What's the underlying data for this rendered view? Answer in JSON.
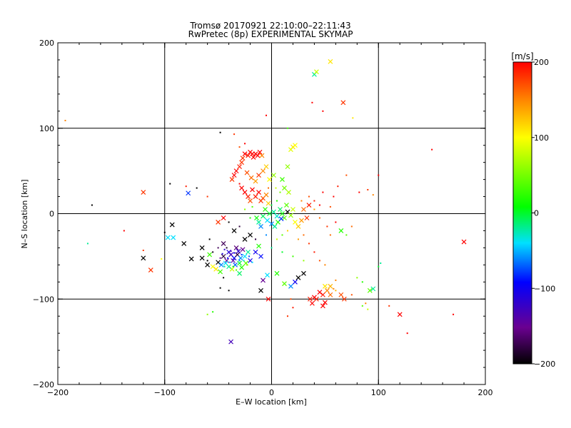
{
  "chart_data": {
    "type": "scatter",
    "title": "Tromsø 20170921 22:10:00–22:11:43",
    "subtitle": "RwPretec (8p) EXPERIMENTAL SKYMAP",
    "xlabel": "E–W location [km]",
    "ylabel": "N–S location [km]",
    "xlim": [
      -200,
      200
    ],
    "ylim": [
      -200,
      200
    ],
    "x_ticks": [
      -200,
      -100,
      0,
      100,
      200
    ],
    "y_ticks": [
      -200,
      -100,
      0,
      100,
      200
    ],
    "grid": true,
    "colorbar": {
      "label": "[m/s]",
      "range": [
        -200,
        200
      ],
      "ticks": [
        200,
        100,
        0,
        -100,
        -200
      ],
      "colormap": "rainbow (black→purple→blue→cyan→green→yellow→red)"
    },
    "marker_note": "cross = larger detections, dot = smaller detections",
    "points": [
      [
        -193,
        109,
        150,
        "dot"
      ],
      [
        -168,
        10,
        -200,
        "dot"
      ],
      [
        -120,
        25,
        180,
        "cross"
      ],
      [
        -113,
        -66,
        180,
        "cross"
      ],
      [
        -120,
        -52,
        -200,
        "cross"
      ],
      [
        -103,
        -53,
        100,
        "dot"
      ],
      [
        -93,
        -13,
        -200,
        "cross"
      ],
      [
        -92,
        -28,
        -40,
        "cross"
      ],
      [
        -97,
        -28,
        -40,
        "cross"
      ],
      [
        -82,
        -35,
        -200,
        "cross"
      ],
      [
        -78,
        24,
        -80,
        "cross"
      ],
      [
        -75,
        -53,
        -200,
        "cross"
      ],
      [
        -65,
        -52,
        -200,
        "cross"
      ],
      [
        -60,
        -60,
        -200,
        "cross"
      ],
      [
        -55,
        -62,
        100,
        "cross"
      ],
      [
        -50,
        -57,
        -200,
        "cross"
      ],
      [
        -45,
        -50,
        -180,
        "cross"
      ],
      [
        -48,
        -68,
        30,
        "cross"
      ],
      [
        -42,
        -55,
        -150,
        "cross"
      ],
      [
        -40,
        -45,
        -110,
        "cross"
      ],
      [
        -38,
        -48,
        -130,
        "cross"
      ],
      [
        -35,
        -52,
        -90,
        "cross"
      ],
      [
        -33,
        -40,
        -160,
        "cross"
      ],
      [
        -30,
        -58,
        0,
        "cross"
      ],
      [
        -28,
        -63,
        20,
        "cross"
      ],
      [
        -25,
        -50,
        -40,
        "cross"
      ],
      [
        -22,
        -45,
        -20,
        "cross"
      ],
      [
        -20,
        -55,
        -100,
        "cross"
      ],
      [
        -45,
        -35,
        -170,
        "cross"
      ],
      [
        -47,
        -60,
        -60,
        "cross"
      ],
      [
        -52,
        -65,
        110,
        "cross"
      ],
      [
        -37,
        -65,
        80,
        "cross"
      ],
      [
        -30,
        -70,
        -10,
        "cross"
      ],
      [
        -25,
        -30,
        -200,
        "cross"
      ],
      [
        -20,
        -25,
        -200,
        "cross"
      ],
      [
        -15,
        -45,
        -100,
        "cross"
      ],
      [
        -10,
        -50,
        -90,
        "cross"
      ],
      [
        -12,
        -38,
        20,
        "cross"
      ],
      [
        -38,
        -150,
        -130,
        "cross"
      ],
      [
        -65,
        -40,
        -200,
        "cross"
      ],
      [
        -58,
        -48,
        30,
        "cross"
      ],
      [
        -43,
        -58,
        -40,
        "cross"
      ],
      [
        -40,
        -62,
        -20,
        "cross"
      ],
      [
        -36,
        -55,
        -140,
        "cross"
      ],
      [
        -34,
        -60,
        -70,
        "cross"
      ],
      [
        -32,
        -48,
        -180,
        "cross"
      ],
      [
        -31,
        -44,
        -120,
        "cross"
      ],
      [
        -29,
        -52,
        -60,
        "cross"
      ],
      [
        -27,
        -42,
        -150,
        "cross"
      ],
      [
        -24,
        -58,
        40,
        "cross"
      ],
      [
        -55,
        -45,
        -190,
        "dot"
      ],
      [
        -50,
        -40,
        -170,
        "dot"
      ],
      [
        -44,
        -42,
        -120,
        "dot"
      ],
      [
        -41,
        -52,
        -90,
        "dot"
      ],
      [
        -39,
        -57,
        -50,
        "dot"
      ],
      [
        -36,
        -62,
        10,
        "dot"
      ],
      [
        -33,
        -66,
        40,
        "dot"
      ],
      [
        -28,
        -48,
        -80,
        "dot"
      ],
      [
        -26,
        -55,
        -30,
        "dot"
      ],
      [
        -23,
        -60,
        60,
        "dot"
      ],
      [
        -48,
        -52,
        -150,
        "dot"
      ],
      [
        -46,
        -47,
        -110,
        "dot"
      ],
      [
        -44,
        -62,
        -20,
        "dot"
      ],
      [
        -42,
        -40,
        -190,
        "dot"
      ],
      [
        -38,
        -44,
        -130,
        "dot"
      ],
      [
        -35,
        -46,
        -100,
        "dot"
      ],
      [
        -30,
        -55,
        -60,
        "dot"
      ],
      [
        -21,
        -50,
        -70,
        "dot"
      ],
      [
        -18,
        -57,
        -40,
        "dot"
      ],
      [
        -60,
        -55,
        -200,
        "dot"
      ],
      [
        -18,
        70,
        200,
        "cross"
      ],
      [
        -15,
        70,
        200,
        "cross"
      ],
      [
        -13,
        68,
        200,
        "cross"
      ],
      [
        -20,
        72,
        200,
        "cross"
      ],
      [
        -22,
        68,
        190,
        "cross"
      ],
      [
        -25,
        70,
        200,
        "cross"
      ],
      [
        -27,
        65,
        180,
        "cross"
      ],
      [
        -17,
        66,
        200,
        "cross"
      ],
      [
        -11,
        72,
        200,
        "cross"
      ],
      [
        -9,
        68,
        150,
        "cross"
      ],
      [
        -30,
        55,
        190,
        "cross"
      ],
      [
        -35,
        45,
        200,
        "cross"
      ],
      [
        -37,
        40,
        180,
        "cross"
      ],
      [
        -33,
        50,
        200,
        "cross"
      ],
      [
        -28,
        60,
        180,
        "cross"
      ],
      [
        -23,
        48,
        170,
        "cross"
      ],
      [
        -19,
        42,
        160,
        "cross"
      ],
      [
        -15,
        38,
        140,
        "cross"
      ],
      [
        -12,
        45,
        180,
        "cross"
      ],
      [
        -8,
        50,
        150,
        "cross"
      ],
      [
        -5,
        55,
        120,
        "cross"
      ],
      [
        -2,
        40,
        100,
        "cross"
      ],
      [
        2,
        45,
        60,
        "cross"
      ],
      [
        -18,
        28,
        200,
        "cross"
      ],
      [
        -15,
        20,
        190,
        "cross"
      ],
      [
        -12,
        25,
        200,
        "cross"
      ],
      [
        -10,
        15,
        180,
        "cross"
      ],
      [
        -8,
        18,
        170,
        "cross"
      ],
      [
        -5,
        22,
        150,
        "cross"
      ],
      [
        -3,
        12,
        120,
        "cross"
      ],
      [
        -25,
        25,
        200,
        "cross"
      ],
      [
        -22,
        20,
        190,
        "cross"
      ],
      [
        -20,
        15,
        170,
        "cross"
      ],
      [
        -28,
        30,
        200,
        "cross"
      ],
      [
        -30,
        35,
        200,
        "dot"
      ],
      [
        -6,
        5,
        20,
        "cross"
      ],
      [
        -2,
        0,
        0,
        "cross"
      ],
      [
        2,
        2,
        -20,
        "cross"
      ],
      [
        5,
        -3,
        -30,
        "cross"
      ],
      [
        8,
        5,
        -10,
        "cross"
      ],
      [
        10,
        0,
        10,
        "cross"
      ],
      [
        12,
        -5,
        40,
        "cross"
      ],
      [
        15,
        2,
        -200,
        "cross"
      ],
      [
        18,
        -2,
        60,
        "cross"
      ],
      [
        -4,
        -8,
        -40,
        "cross"
      ],
      [
        0,
        -12,
        -60,
        "cross"
      ],
      [
        3,
        -15,
        -20,
        "cross"
      ],
      [
        6,
        -10,
        20,
        "cross"
      ],
      [
        9,
        -6,
        -80,
        "cross"
      ],
      [
        -8,
        -3,
        -10,
        "cross"
      ],
      [
        -10,
        -15,
        -60,
        "cross"
      ],
      [
        -12,
        -10,
        -20,
        "cross"
      ],
      [
        -14,
        -5,
        10,
        "cross"
      ],
      [
        14,
        10,
        40,
        "cross"
      ],
      [
        20,
        5,
        80,
        "cross"
      ],
      [
        22,
        -10,
        100,
        "cross"
      ],
      [
        25,
        -15,
        120,
        "cross"
      ],
      [
        28,
        -8,
        140,
        "cross"
      ],
      [
        30,
        5,
        160,
        "cross"
      ],
      [
        33,
        -5,
        180,
        "cross"
      ],
      [
        35,
        10,
        190,
        "cross"
      ],
      [
        20,
        78,
        110,
        "cross"
      ],
      [
        22,
        80,
        100,
        "cross"
      ],
      [
        18,
        75,
        90,
        "cross"
      ],
      [
        15,
        55,
        60,
        "cross"
      ],
      [
        10,
        40,
        30,
        "cross"
      ],
      [
        12,
        30,
        50,
        "cross"
      ],
      [
        16,
        25,
        70,
        "cross"
      ],
      [
        40,
        163,
        -20,
        "cross"
      ],
      [
        42,
        166,
        80,
        "cross"
      ],
      [
        55,
        178,
        110,
        "cross"
      ],
      [
        67,
        130,
        180,
        "cross"
      ],
      [
        70,
        45,
        170,
        "dot"
      ],
      [
        62,
        32,
        190,
        "dot"
      ],
      [
        58,
        20,
        200,
        "dot"
      ],
      [
        55,
        8,
        170,
        "dot"
      ],
      [
        48,
        25,
        200,
        "dot"
      ],
      [
        45,
        -5,
        160,
        "dot"
      ],
      [
        40,
        5,
        140,
        "dot"
      ],
      [
        65,
        -20,
        20,
        "cross"
      ],
      [
        70,
        -25,
        40,
        "dot"
      ],
      [
        75,
        -15,
        160,
        "dot"
      ],
      [
        82,
        25,
        200,
        "dot"
      ],
      [
        90,
        28,
        180,
        "dot"
      ],
      [
        95,
        22,
        150,
        "dot"
      ],
      [
        100,
        45,
        200,
        "dot"
      ],
      [
        150,
        75,
        200,
        "dot"
      ],
      [
        180,
        -33,
        200,
        "cross"
      ],
      [
        170,
        -118,
        200,
        "dot"
      ],
      [
        120,
        -118,
        200,
        "cross"
      ],
      [
        127,
        -140,
        200,
        "dot"
      ],
      [
        110,
        -108,
        180,
        "dot"
      ],
      [
        95,
        -88,
        -20,
        "cross"
      ],
      [
        92,
        -90,
        40,
        "cross"
      ],
      [
        85,
        -80,
        20,
        "dot"
      ],
      [
        80,
        -75,
        60,
        "dot"
      ],
      [
        100,
        -62,
        0,
        "dot"
      ],
      [
        102,
        -58,
        -20,
        "dot"
      ],
      [
        88,
        -105,
        150,
        "dot"
      ],
      [
        90,
        -112,
        80,
        "dot"
      ],
      [
        85,
        -108,
        40,
        "dot"
      ],
      [
        68,
        -100,
        180,
        "cross"
      ],
      [
        65,
        -95,
        170,
        "cross"
      ],
      [
        55,
        -85,
        130,
        "cross"
      ],
      [
        52,
        -90,
        150,
        "cross"
      ],
      [
        50,
        -85,
        110,
        "cross"
      ],
      [
        48,
        -95,
        190,
        "cross"
      ],
      [
        45,
        -92,
        200,
        "cross"
      ],
      [
        42,
        -100,
        190,
        "cross"
      ],
      [
        40,
        -98,
        200,
        "cross"
      ],
      [
        38,
        -105,
        200,
        "cross"
      ],
      [
        36,
        -100,
        190,
        "cross"
      ],
      [
        48,
        -108,
        200,
        "cross"
      ],
      [
        50,
        -104,
        200,
        "cross"
      ],
      [
        55,
        -95,
        160,
        "cross"
      ],
      [
        58,
        -88,
        150,
        "dot"
      ],
      [
        60,
        -90,
        130,
        "dot"
      ],
      [
        75,
        -95,
        170,
        "dot"
      ],
      [
        60,
        -78,
        150,
        "dot"
      ],
      [
        25,
        -75,
        -200,
        "cross"
      ],
      [
        30,
        -70,
        -200,
        "cross"
      ],
      [
        22,
        -80,
        -100,
        "cross"
      ],
      [
        18,
        -85,
        -60,
        "cross"
      ],
      [
        12,
        -82,
        40,
        "cross"
      ],
      [
        5,
        -70,
        20,
        "cross"
      ],
      [
        -4,
        -72,
        -40,
        "cross"
      ],
      [
        -8,
        -78,
        -150,
        "cross"
      ],
      [
        -3,
        -100,
        200,
        "cross"
      ],
      [
        -10,
        -90,
        -200,
        "cross"
      ],
      [
        15,
        -120,
        180,
        "dot"
      ],
      [
        20,
        -110,
        190,
        "dot"
      ],
      [
        18,
        -100,
        170,
        "dot"
      ],
      [
        -40,
        -90,
        -200,
        "dot"
      ],
      [
        -48,
        -87,
        -200,
        "dot"
      ],
      [
        -55,
        -115,
        20,
        "dot"
      ],
      [
        -60,
        -118,
        60,
        "dot"
      ],
      [
        -100,
        -22,
        -200,
        "dot"
      ],
      [
        -120,
        -43,
        180,
        "dot"
      ],
      [
        -138,
        -20,
        200,
        "dot"
      ],
      [
        -172,
        -35,
        -20,
        "dot"
      ],
      [
        -95,
        35,
        -200,
        "dot"
      ],
      [
        -80,
        32,
        190,
        "dot"
      ],
      [
        -70,
        30,
        -200,
        "dot"
      ],
      [
        -60,
        20,
        180,
        "dot"
      ],
      [
        -50,
        -10,
        180,
        "cross"
      ],
      [
        -58,
        -30,
        -200,
        "dot"
      ],
      [
        -45,
        -75,
        -200,
        "dot"
      ],
      [
        -48,
        95,
        -200,
        "dot"
      ],
      [
        -35,
        93,
        180,
        "dot"
      ],
      [
        -45,
        -5,
        200,
        "cross"
      ],
      [
        -40,
        -10,
        -200,
        "dot"
      ],
      [
        -35,
        -20,
        -200,
        "cross"
      ],
      [
        -30,
        -15,
        -180,
        "dot"
      ],
      [
        38,
        130,
        200,
        "dot"
      ],
      [
        48,
        120,
        200,
        "dot"
      ],
      [
        76,
        112,
        110,
        "dot"
      ],
      [
        15,
        100,
        30,
        "dot"
      ],
      [
        -5,
        115,
        200,
        "dot"
      ],
      [
        -25,
        82,
        200,
        "dot"
      ],
      [
        -30,
        78,
        170,
        "dot"
      ],
      [
        5,
        -30,
        80,
        "dot"
      ],
      [
        10,
        -25,
        40,
        "dot"
      ],
      [
        15,
        -20,
        120,
        "dot"
      ],
      [
        -5,
        -25,
        -60,
        "dot"
      ],
      [
        -15,
        -30,
        -180,
        "dot"
      ],
      [
        25,
        -30,
        140,
        "dot"
      ],
      [
        30,
        -25,
        160,
        "dot"
      ],
      [
        35,
        -35,
        180,
        "dot"
      ],
      [
        40,
        -45,
        190,
        "dot"
      ],
      [
        45,
        -55,
        170,
        "dot"
      ],
      [
        50,
        -60,
        150,
        "dot"
      ],
      [
        30,
        -55,
        60,
        "dot"
      ],
      [
        20,
        -50,
        30,
        "dot"
      ],
      [
        10,
        -45,
        0,
        "dot"
      ],
      [
        0,
        -40,
        -20,
        "dot"
      ],
      [
        -20,
        -5,
        20,
        "dot"
      ],
      [
        -18,
        8,
        40,
        "dot"
      ],
      [
        -25,
        5,
        60,
        "dot"
      ],
      [
        0,
        10,
        -10,
        "dot"
      ],
      [
        5,
        15,
        20,
        "dot"
      ],
      [
        8,
        25,
        50,
        "dot"
      ],
      [
        4,
        30,
        80,
        "dot"
      ],
      [
        -3,
        30,
        160,
        "dot"
      ],
      [
        28,
        15,
        150,
        "dot"
      ],
      [
        35,
        20,
        170,
        "dot"
      ],
      [
        40,
        15,
        190,
        "dot"
      ],
      [
        45,
        10,
        200,
        "dot"
      ],
      [
        52,
        -15,
        180,
        "dot"
      ],
      [
        55,
        -25,
        160,
        "dot"
      ],
      [
        60,
        -10,
        200,
        "dot"
      ]
    ]
  }
}
